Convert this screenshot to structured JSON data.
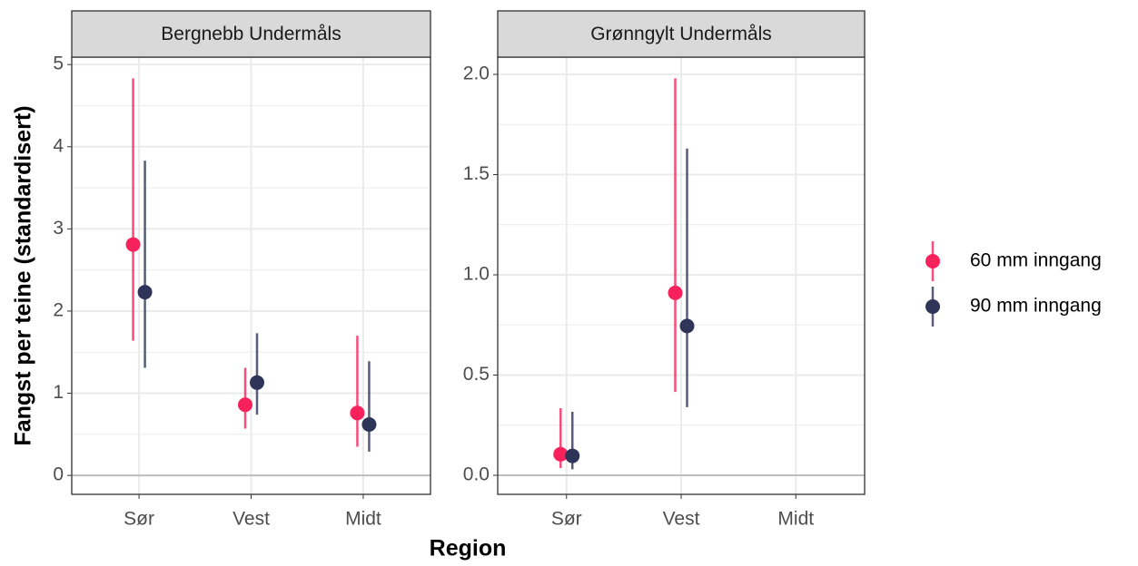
{
  "chart_data": {
    "type": "pointrange",
    "xlabel": "Region",
    "ylabel": "Fangst per teine (standardisert)",
    "legend": [
      {
        "name": "60 mm inngang",
        "color": "#f7215b"
      },
      {
        "name": "90 mm inngang",
        "color": "#2e3558"
      }
    ],
    "grid": true,
    "facets": [
      {
        "title": "Bergnebb Undermåls",
        "categories": [
          "Sør",
          "Vest",
          "Midt"
        ],
        "ylim": [
          -0.23,
          5.09
        ],
        "yticks": [
          0,
          1,
          2,
          3,
          4,
          5
        ],
        "series": [
          {
            "color": "#f7215b",
            "values": [
              2.81,
              0.86,
              0.76
            ],
            "lower": [
              1.64,
              0.57,
              0.35
            ],
            "upper": [
              4.83,
              1.31,
              1.7
            ]
          },
          {
            "color": "#2e3558",
            "values": [
              2.23,
              1.13,
              0.62
            ],
            "lower": [
              1.31,
              0.74,
              0.29
            ],
            "upper": [
              3.83,
              1.73,
              1.39
            ]
          }
        ]
      },
      {
        "title": "Grønngylt Undermåls",
        "categories": [
          "Sør",
          "Vest",
          "Midt"
        ],
        "ylim": [
          -0.095,
          2.086
        ],
        "yticks": [
          {
            "value": 0,
            "label": "0.0"
          },
          0.5,
          {
            "value": 1,
            "label": "1.0"
          },
          1.5,
          {
            "value": 2,
            "label": "2.0"
          }
        ],
        "series": [
          {
            "color": "#f7215b",
            "values": [
              0.105,
              0.91,
              null
            ],
            "lower": [
              0.036,
              0.416,
              null
            ],
            "upper": [
              0.335,
              1.98,
              null
            ]
          },
          {
            "color": "#2e3558",
            "values": [
              0.097,
              0.745,
              null
            ],
            "lower": [
              0.03,
              0.34,
              null
            ],
            "upper": [
              0.317,
              1.63,
              null
            ]
          }
        ]
      }
    ]
  }
}
